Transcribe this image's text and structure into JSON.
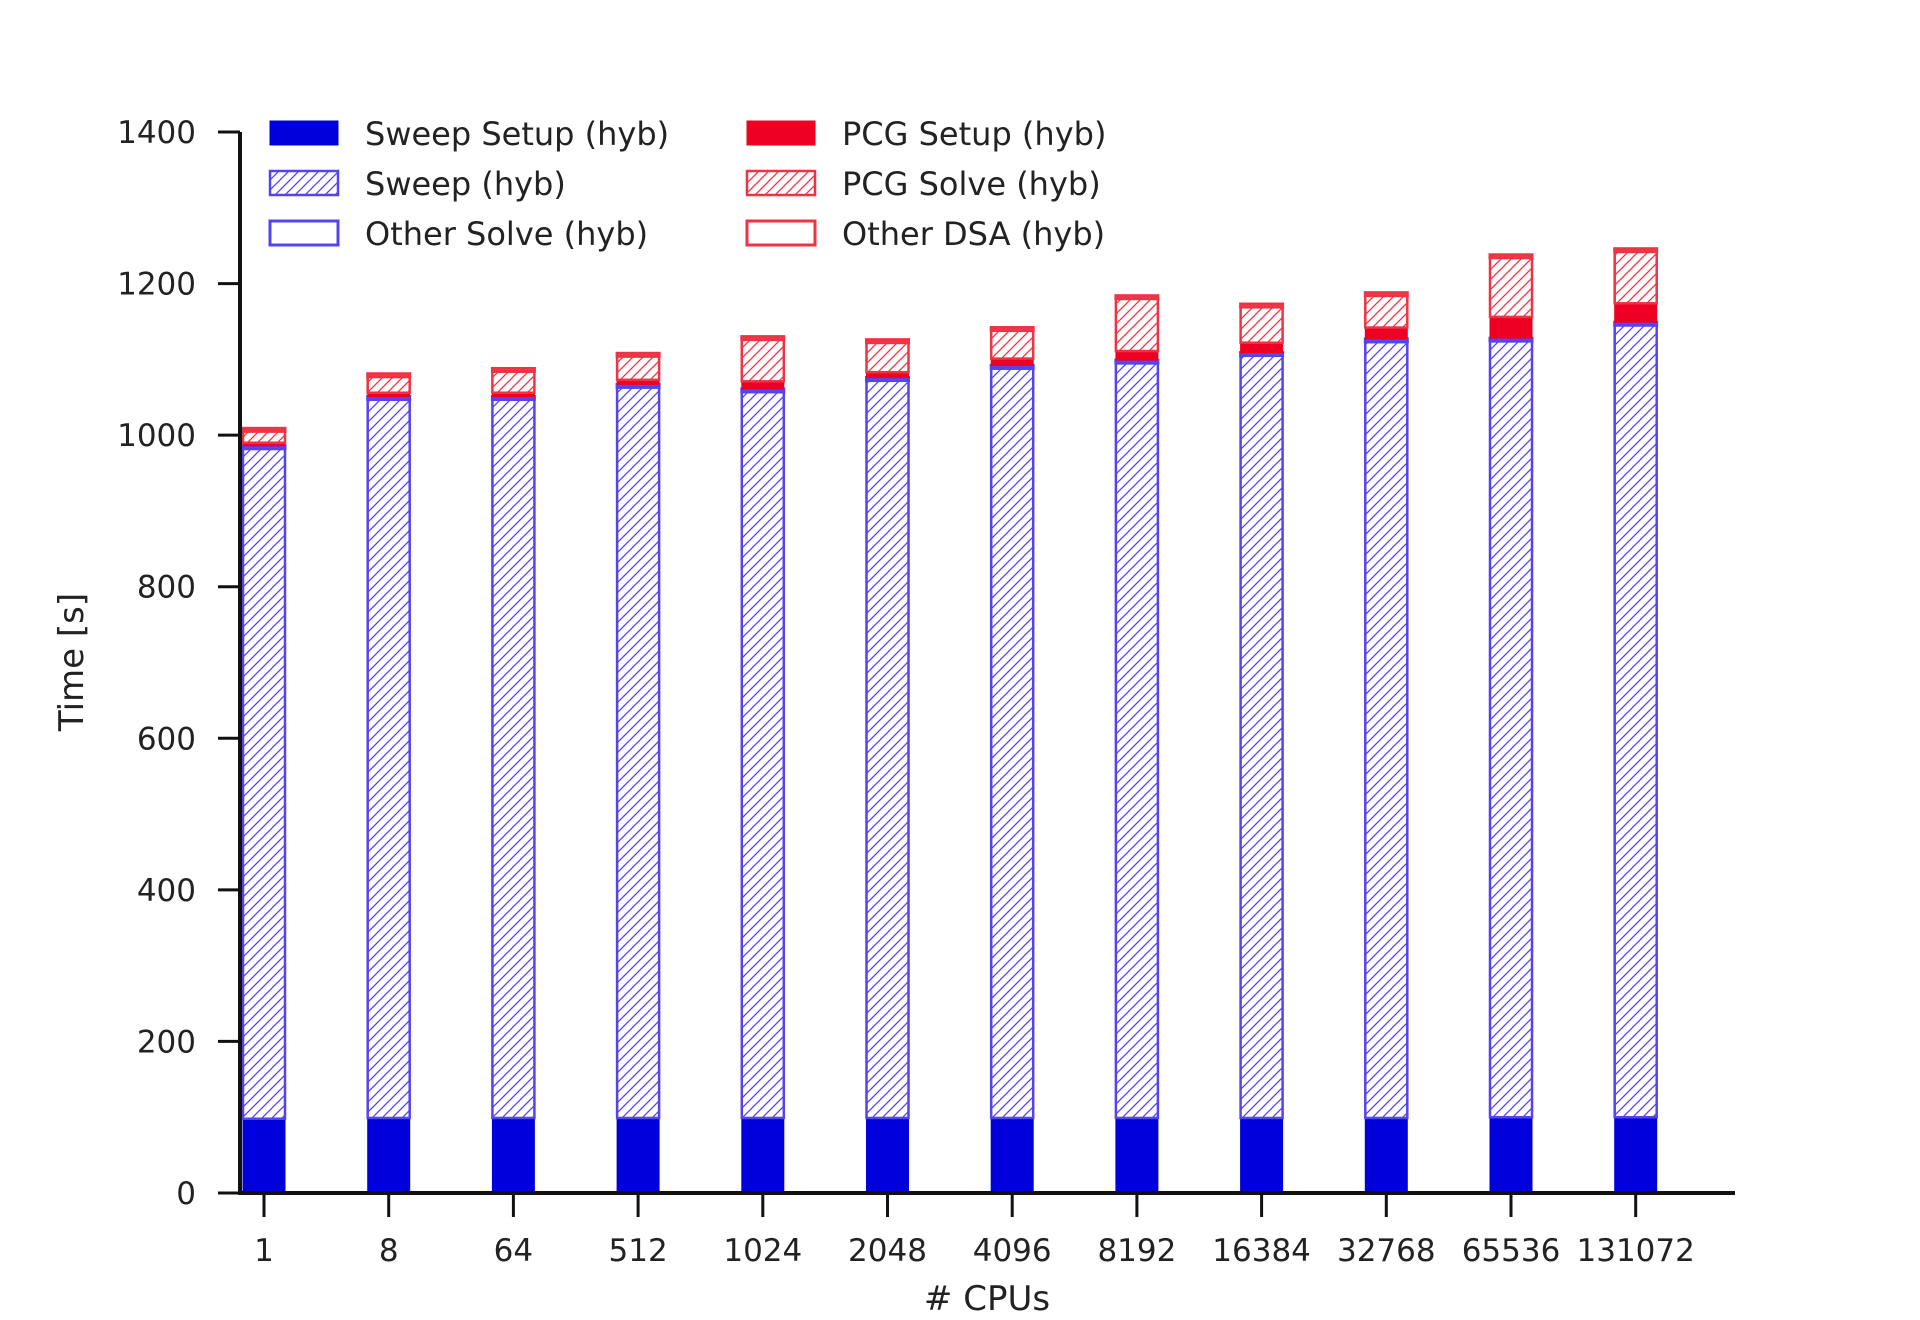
{
  "chart_data": {
    "type": "bar",
    "stacked": true,
    "xlabel": "# CPUs",
    "ylabel": "Time [s]",
    "ylim": [
      0,
      1400
    ],
    "yticks": [
      "0",
      "200",
      "400",
      "600",
      "800",
      "1000",
      "1200",
      "1400"
    ],
    "categories": [
      "1",
      "8",
      "64",
      "512",
      "1024",
      "2048",
      "4096",
      "8192",
      "16384",
      "32768",
      "65536",
      "131072"
    ],
    "grid": false,
    "legend_position": "top-left",
    "series": [
      {
        "name": "Sweep Setup (hyb)",
        "style": "solid",
        "color": "#0000dd",
        "values": [
          98,
          99,
          99,
          99,
          99,
          99,
          99,
          99,
          99,
          99,
          100,
          100
        ]
      },
      {
        "name": "Sweep (hyb)",
        "style": "hatched",
        "color": "#5544ee",
        "values": [
          884,
          948,
          948,
          964,
          958,
          973,
          989,
          996,
          1006,
          1024,
          1024,
          1045
        ]
      },
      {
        "name": "Other Solve (hyb)",
        "style": "outline",
        "color": "#5544ee",
        "values": [
          4,
          4,
          4,
          4,
          4,
          4,
          4,
          4,
          4,
          4,
          4,
          4
        ]
      },
      {
        "name": "PCG Setup (hyb)",
        "style": "solid",
        "color": "#ee0022",
        "values": [
          4,
          5,
          5,
          6,
          10,
          7,
          9,
          12,
          13,
          15,
          28,
          25
        ]
      },
      {
        "name": "PCG Solve (hyb)",
        "style": "hatched",
        "color": "#ee3344",
        "values": [
          15,
          21,
          28,
          31,
          55,
          39,
          37,
          69,
          47,
          42,
          78,
          68
        ]
      },
      {
        "name": "Other DSA (hyb)",
        "style": "outline",
        "color": "#ee3344",
        "values": [
          4,
          4,
          4,
          4,
          4,
          4,
          4,
          4,
          4,
          4,
          4,
          4
        ]
      }
    ]
  }
}
